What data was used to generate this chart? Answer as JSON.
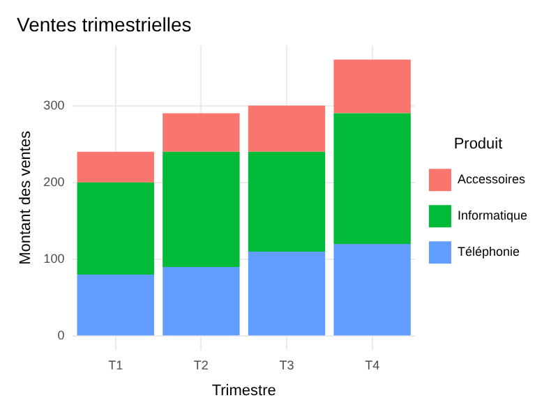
{
  "chart_data": {
    "type": "bar",
    "title": "Ventes trimestrielles",
    "xlabel": "Trimestre",
    "ylabel": "Montant des ventes",
    "legend_title": "Produit",
    "categories": [
      "T1",
      "T2",
      "T3",
      "T4"
    ],
    "stacked": true,
    "series": [
      {
        "name": "Téléphonie",
        "color": "#619cff",
        "values": [
          80,
          90,
          110,
          120
        ]
      },
      {
        "name": "Informatique",
        "color": "#00ba38",
        "values": [
          120,
          150,
          130,
          170
        ]
      },
      {
        "name": "Accessoires",
        "color": "#f8766d",
        "values": [
          40,
          50,
          60,
          70
        ]
      }
    ],
    "ylim": [
      -18,
      378
    ],
    "yticks": [
      0,
      100,
      200,
      300
    ],
    "grid": true,
    "legend": "right"
  }
}
